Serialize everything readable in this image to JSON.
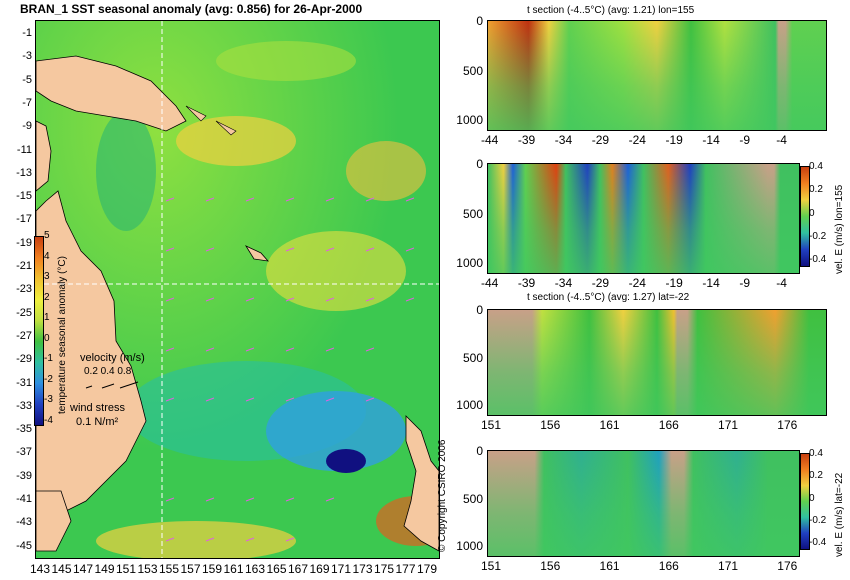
{
  "map": {
    "title": "BRAN_1 SST seasonal anomaly (avg: 0.856) for 26-Apr-2000",
    "lat_ticks": [
      "-1",
      "-3",
      "-5",
      "-7",
      "-9",
      "-11",
      "-13",
      "-15",
      "-17",
      "-19",
      "-21",
      "-23",
      "-25",
      "-27",
      "-29",
      "-31",
      "-33",
      "-35",
      "-37",
      "-39",
      "-41",
      "-43",
      "-45"
    ],
    "lon_ticks": [
      "143",
      "145",
      "147",
      "149",
      "151",
      "153",
      "155",
      "157",
      "159",
      "161",
      "163",
      "165",
      "167",
      "169",
      "171",
      "173",
      "175",
      "177",
      "179"
    ],
    "colorbar_ticks": [
      "5",
      "4",
      "3",
      "2",
      "1",
      "0",
      "-1",
      "-2",
      "-3",
      "-4"
    ],
    "colorbar_label": "temperature seasonal anomaly (°C)",
    "velocity_label": "velocity (m/s)",
    "velocity_scale": "0.2 0.4 0.8",
    "wind_label": "wind stress",
    "wind_scale": "0.1 N/m²",
    "copyright": "© Copyright CSIRO 2006",
    "colors": {
      "land": "#f5c8a0",
      "ocean": "#4fd04a",
      "warm": "#f0a030",
      "cold": "#1e60d8",
      "arrows": "#e060e0"
    }
  },
  "panels": [
    {
      "title": "t section (-4..5°C) (avg: 1.21) lon=155",
      "y_ticks": [
        "0",
        "500",
        "1000"
      ],
      "x_ticks": [
        "-44",
        "-39",
        "-34",
        "-29",
        "-24",
        "-19",
        "-14",
        "-9",
        "-4"
      ],
      "side_label": "",
      "colorbar": null
    },
    {
      "title": "",
      "y_ticks": [
        "0",
        "500",
        "1000"
      ],
      "x_ticks": [
        "-44",
        "-39",
        "-34",
        "-29",
        "-24",
        "-19",
        "-14",
        "-9",
        "-4"
      ],
      "side_label": "vel. E (m/s) lon=155",
      "colorbar": [
        "0.4",
        "0.2",
        "0",
        "-0.2",
        "-0.4"
      ]
    },
    {
      "title": "t section (-4..5°C) (avg: 1.27) lat=-22",
      "y_ticks": [
        "0",
        "500",
        "1000"
      ],
      "x_ticks": [
        "151",
        "156",
        "161",
        "166",
        "171",
        "176"
      ],
      "side_label": "",
      "colorbar": null
    },
    {
      "title": "",
      "y_ticks": [
        "0",
        "500",
        "1000"
      ],
      "x_ticks": [
        "151",
        "156",
        "161",
        "166",
        "171",
        "176"
      ],
      "side_label": "vel. E (m/s) lat=-22",
      "colorbar": [
        "0.4",
        "0.2",
        "0",
        "-0.2",
        "-0.4"
      ]
    }
  ]
}
